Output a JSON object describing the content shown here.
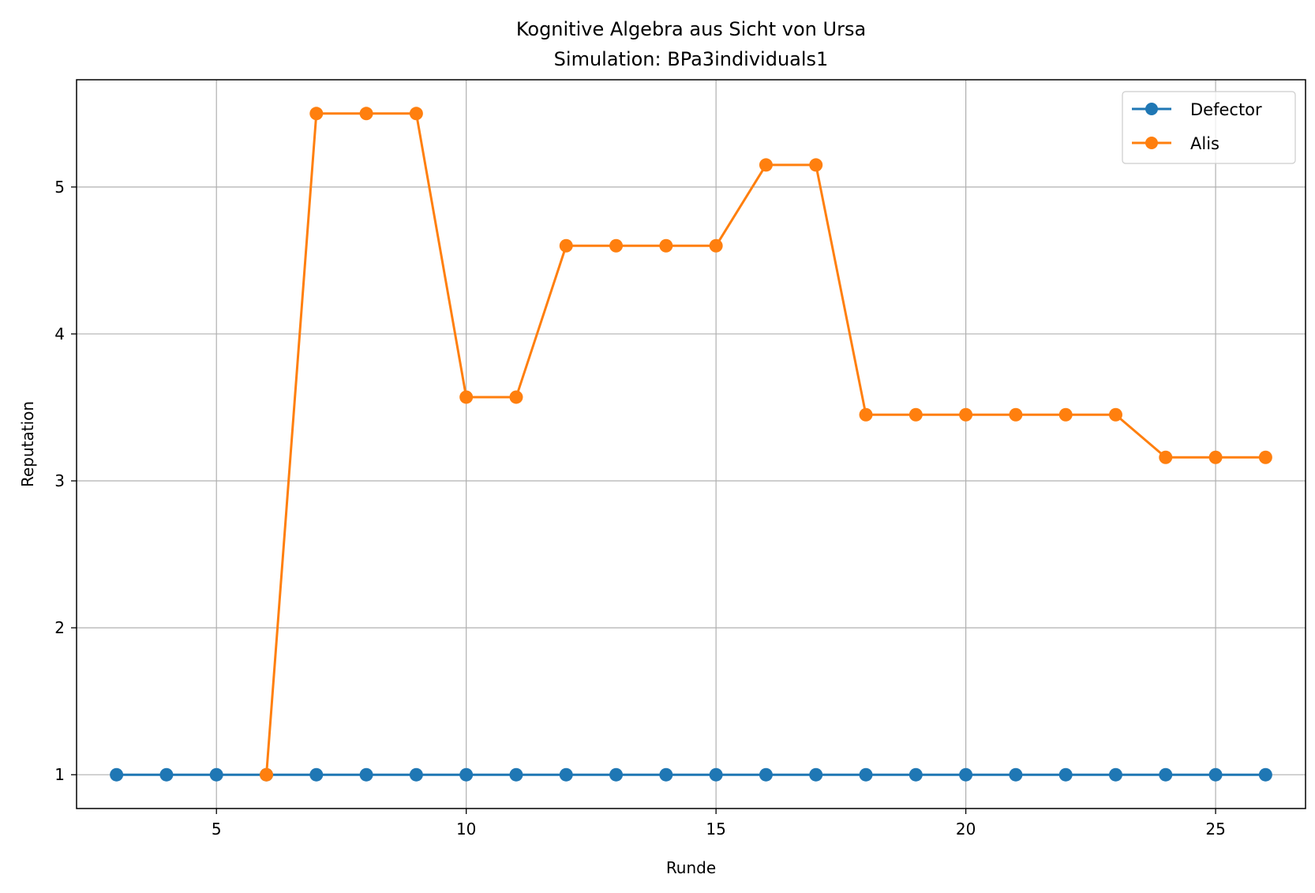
{
  "chart_data": {
    "type": "line",
    "title": "Kognitive Algebra aus Sicht von Ursa",
    "subtitle": "Simulation: BPa3individuals1",
    "xlabel": "Runde",
    "ylabel": "Reputation",
    "xlim": [
      2.2,
      26.8
    ],
    "ylim": [
      0.77,
      5.73
    ],
    "xticks": [
      5,
      10,
      15,
      20,
      25
    ],
    "yticks": [
      1,
      2,
      3,
      4,
      5
    ],
    "grid": true,
    "legend_position": "top-right",
    "x": [
      3,
      4,
      5,
      6,
      7,
      8,
      9,
      10,
      11,
      12,
      13,
      14,
      15,
      16,
      17,
      18,
      19,
      20,
      21,
      22,
      23,
      24,
      25,
      26
    ],
    "series": [
      {
        "name": "Defector",
        "color": "#1f77b4",
        "values": [
          1,
          1,
          1,
          1,
          1,
          1,
          1,
          1,
          1,
          1,
          1,
          1,
          1,
          1,
          1,
          1,
          1,
          1,
          1,
          1,
          1,
          1,
          1,
          1
        ]
      },
      {
        "name": "Alis",
        "color": "#ff7f0e",
        "values": [
          null,
          null,
          null,
          1.0,
          5.5,
          5.5,
          5.5,
          3.57,
          3.57,
          4.6,
          4.6,
          4.6,
          4.6,
          5.15,
          5.15,
          3.45,
          3.45,
          3.45,
          3.45,
          3.45,
          3.45,
          3.16,
          3.16,
          3.16
        ]
      }
    ]
  }
}
